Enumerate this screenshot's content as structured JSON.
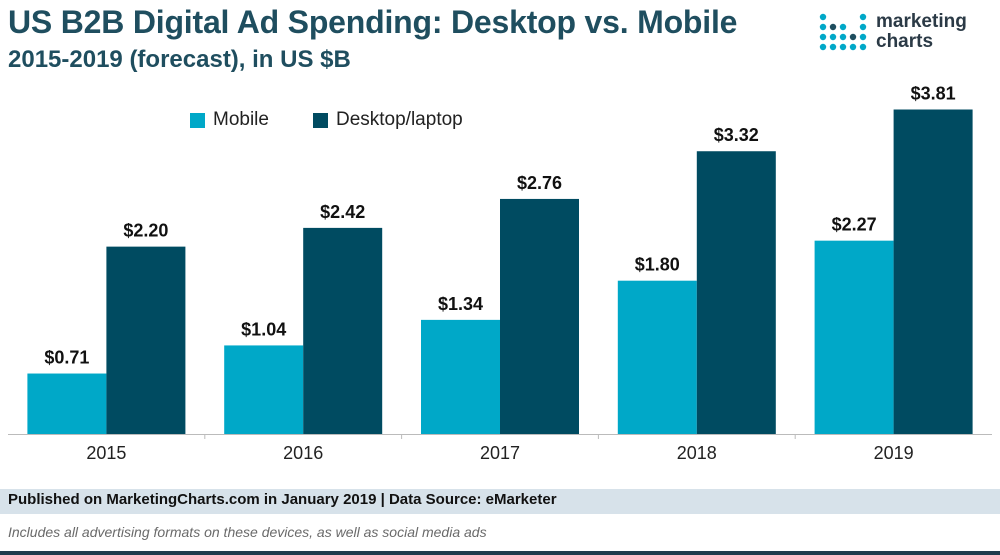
{
  "header": {
    "title": "US B2B Digital Ad Spending: Desktop vs. Mobile",
    "subtitle": "2015-2019 (forecast), in US $B"
  },
  "logo": {
    "line1": "marketing",
    "line2": "charts"
  },
  "colors": {
    "mobile": "#00a8c8",
    "desktop": "#004b61",
    "axis": "#bbbbbb",
    "label": "#111111"
  },
  "chart_data": {
    "type": "bar",
    "categories": [
      "2015",
      "2016",
      "2017",
      "2018",
      "2019"
    ],
    "series": [
      {
        "name": "Mobile",
        "values": [
          0.71,
          1.04,
          1.34,
          1.8,
          2.27
        ],
        "labels": [
          "$0.71",
          "$1.04",
          "$1.34",
          "$1.80",
          "$2.27"
        ]
      },
      {
        "name": "Desktop/laptop",
        "values": [
          2.2,
          2.42,
          2.76,
          3.32,
          3.81
        ],
        "labels": [
          "$2.20",
          "$2.42",
          "$2.76",
          "$3.32",
          "$3.81"
        ]
      }
    ],
    "title": "US B2B Digital Ad Spending: Desktop vs. Mobile",
    "subtitle": "2015-2019 (forecast), in US $B",
    "xlabel": "",
    "ylabel": "",
    "ylim": [
      0,
      4
    ],
    "grid": false,
    "legend": "top-left"
  },
  "footer": {
    "source": "Published on MarketingCharts.com in January 2019 | Data Source: eMarketer",
    "note": "Includes all advertising formats on these devices, as well as social media ads"
  }
}
